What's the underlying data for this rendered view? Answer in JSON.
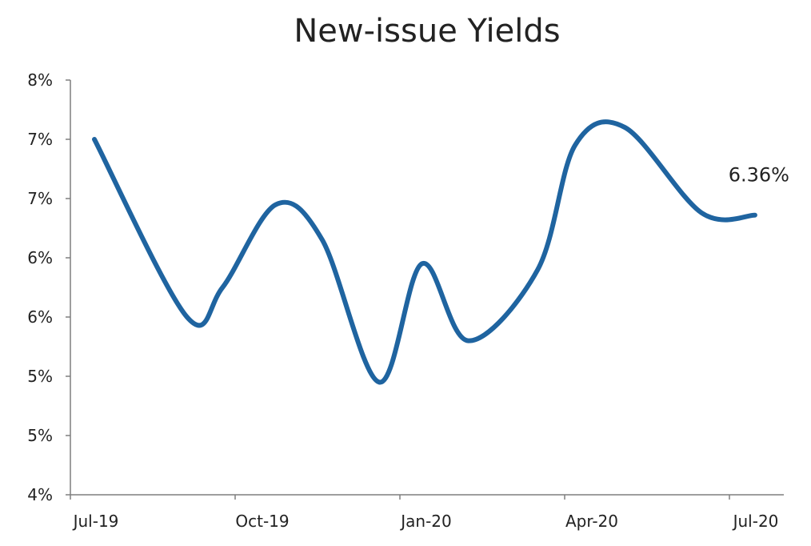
{
  "chart_data": {
    "type": "line",
    "title": "New-issue Yields",
    "xlabel": "",
    "ylabel": "",
    "x_ticks": [
      "Jul-19",
      "Oct-19",
      "Jan-20",
      "Apr-20",
      "Jul-20"
    ],
    "y_ticks": [
      "4%",
      "5%",
      "5%",
      "6%",
      "6%",
      "7%",
      "7%",
      "8%"
    ],
    "ylim": [
      4.0,
      7.5
    ],
    "xlim": [
      "2019-07-01",
      "2020-07-20"
    ],
    "grid": false,
    "legend": "none",
    "series": [
      {
        "color": "#1f64a0",
        "points": [
          {
            "date": "2019-07-10",
            "value": 7.0
          },
          {
            "date": "2019-08-31",
            "value": 5.5
          },
          {
            "date": "2019-09-20",
            "value": 5.75
          },
          {
            "date": "2019-10-20",
            "value": 6.45
          },
          {
            "date": "2019-11-15",
            "value": 6.15
          },
          {
            "date": "2019-12-17",
            "value": 4.95
          },
          {
            "date": "2020-01-10",
            "value": 5.95
          },
          {
            "date": "2020-02-05",
            "value": 5.3
          },
          {
            "date": "2020-03-15",
            "value": 5.9
          },
          {
            "date": "2020-04-05",
            "value": 6.95
          },
          {
            "date": "2020-05-03",
            "value": 7.1
          },
          {
            "date": "2020-06-15",
            "value": 6.38
          },
          {
            "date": "2020-07-15",
            "value": 6.36
          }
        ]
      }
    ],
    "annotations": [
      {
        "text": "6.36%",
        "date": "2020-07-15",
        "value": 6.36
      }
    ]
  }
}
